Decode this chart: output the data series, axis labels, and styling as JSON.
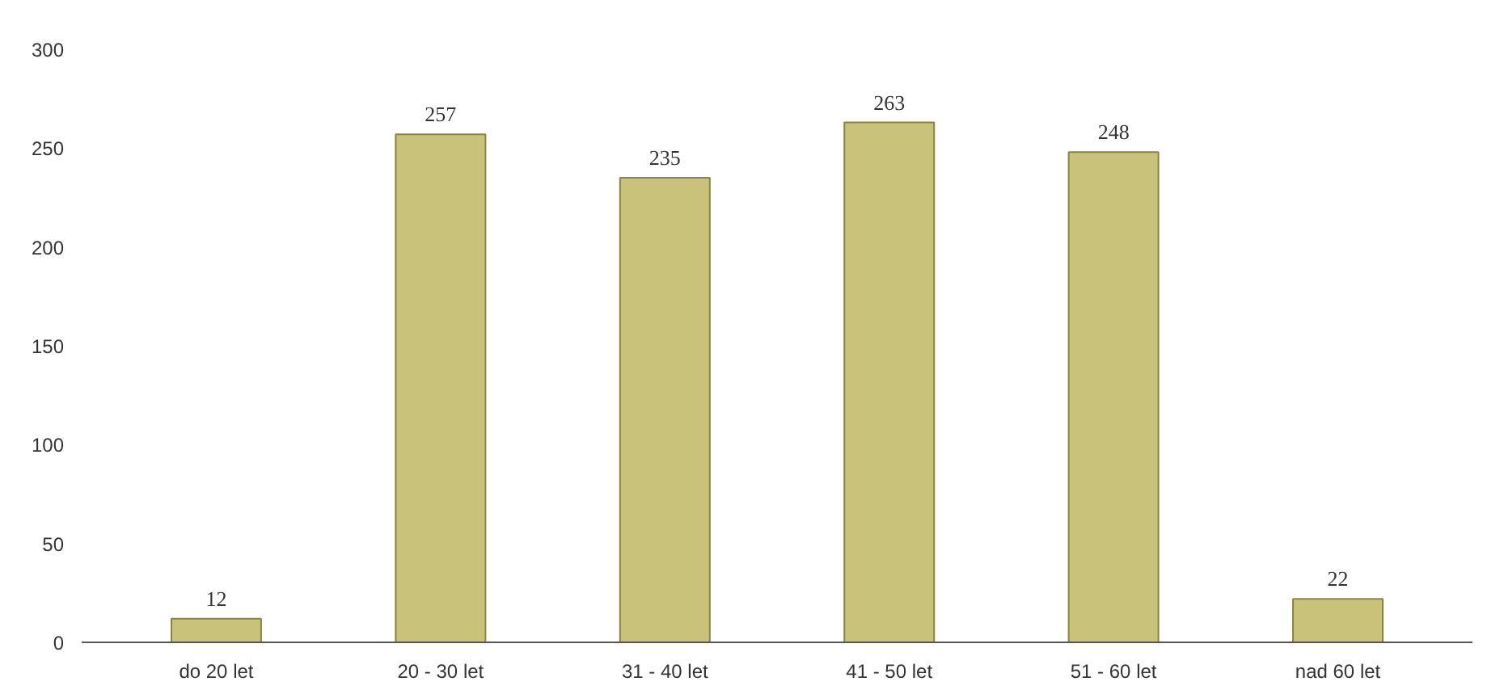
{
  "chart_data": {
    "type": "bar",
    "categories": [
      "do 20 let",
      "20 - 30 let",
      "31 - 40 let",
      "41 - 50 let",
      "51 - 60 let",
      "nad 60 let"
    ],
    "values": [
      12,
      257,
      235,
      263,
      248,
      22
    ],
    "color": "#c9c27a",
    "ylim": [
      0,
      300
    ],
    "yticks": [
      0,
      50,
      100,
      150,
      200,
      250,
      300
    ],
    "grid": false,
    "data_labels": true
  }
}
